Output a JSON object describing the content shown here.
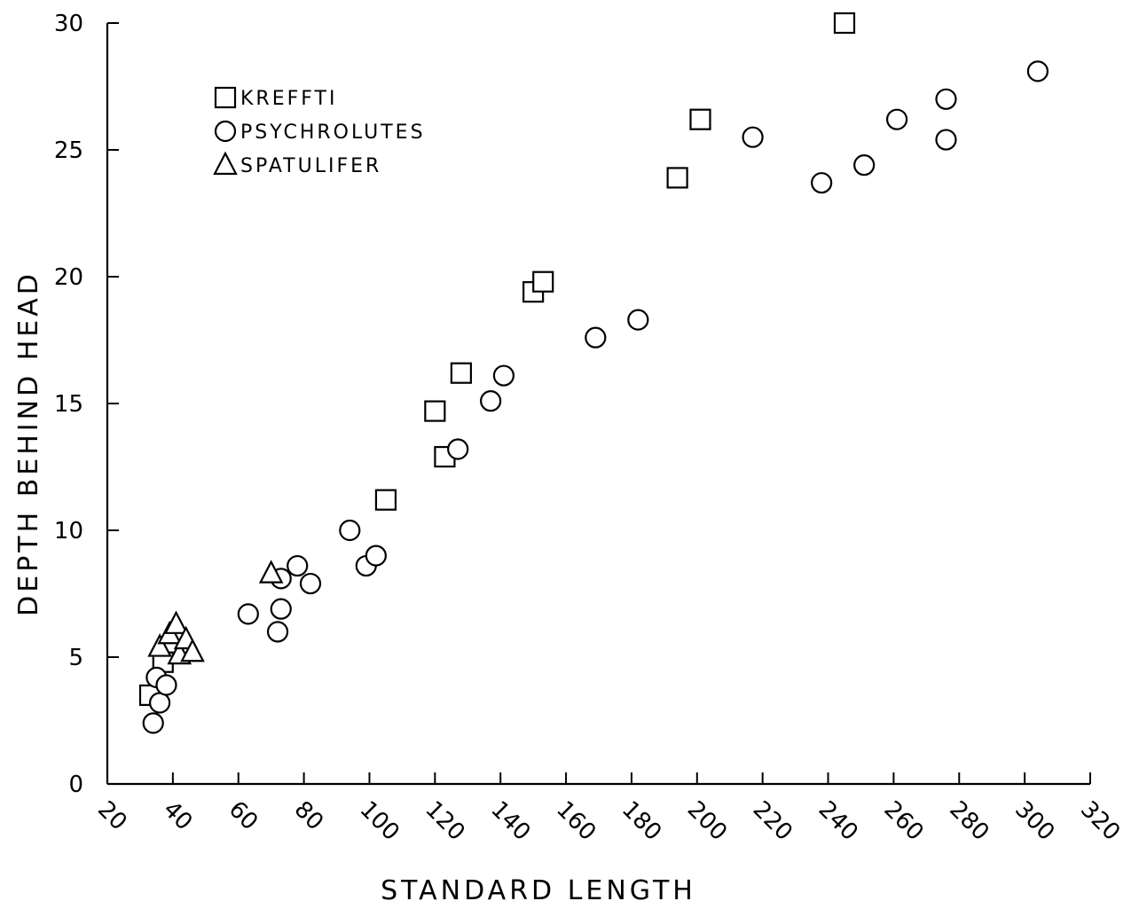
{
  "chart_data": {
    "type": "scatter",
    "title": "",
    "xlabel": "STANDARD LENGTH",
    "ylabel": "DEPTH BEHIND HEAD",
    "xlim": [
      20,
      320
    ],
    "ylim": [
      0,
      30
    ],
    "xticks": [
      20,
      40,
      60,
      80,
      100,
      120,
      140,
      160,
      180,
      200,
      220,
      240,
      260,
      280,
      300,
      320
    ],
    "yticks": [
      0,
      5,
      10,
      15,
      20,
      25,
      30
    ],
    "xtick_labels": [
      "20",
      "40",
      "60",
      "80",
      "100",
      "120",
      "140",
      "160",
      "180",
      "200",
      "220",
      "240",
      "260",
      "280",
      "300",
      "320"
    ],
    "ytick_labels": [
      "0",
      "5",
      "10",
      "15",
      "20",
      "25",
      "30"
    ],
    "grid": false,
    "legend_position": "top-left",
    "series": [
      {
        "name": "KREFFTI",
        "marker": "square",
        "points": [
          [
            33,
            3.5
          ],
          [
            37,
            4.8
          ],
          [
            105,
            11.2
          ],
          [
            120,
            14.7
          ],
          [
            123,
            12.9
          ],
          [
            128,
            16.2
          ],
          [
            150,
            19.4
          ],
          [
            153,
            19.8
          ],
          [
            194,
            23.9
          ],
          [
            201,
            26.2
          ],
          [
            245,
            30.0
          ]
        ]
      },
      {
        "name": "PSYCHROLUTES",
        "marker": "circle",
        "points": [
          [
            34,
            2.4
          ],
          [
            35,
            4.2
          ],
          [
            36,
            3.2
          ],
          [
            38,
            3.9
          ],
          [
            63,
            6.7
          ],
          [
            72,
            6.0
          ],
          [
            73,
            6.9
          ],
          [
            73,
            8.1
          ],
          [
            78,
            8.6
          ],
          [
            82,
            7.9
          ],
          [
            94,
            10.0
          ],
          [
            99,
            8.6
          ],
          [
            102,
            9.0
          ],
          [
            127,
            13.2
          ],
          [
            137,
            15.1
          ],
          [
            141,
            16.1
          ],
          [
            169,
            17.6
          ],
          [
            182,
            18.3
          ],
          [
            217,
            25.5
          ],
          [
            238,
            23.7
          ],
          [
            251,
            24.4
          ],
          [
            261,
            26.2
          ],
          [
            276,
            25.4
          ],
          [
            276,
            27.0
          ],
          [
            304,
            28.1
          ]
        ]
      },
      {
        "name": "SPATULIFER",
        "marker": "triangle",
        "points": [
          [
            36,
            5.4
          ],
          [
            39,
            5.9
          ],
          [
            41,
            6.3
          ],
          [
            42,
            5.1
          ],
          [
            44,
            5.7
          ],
          [
            46,
            5.2
          ],
          [
            70,
            8.3
          ]
        ]
      }
    ]
  }
}
